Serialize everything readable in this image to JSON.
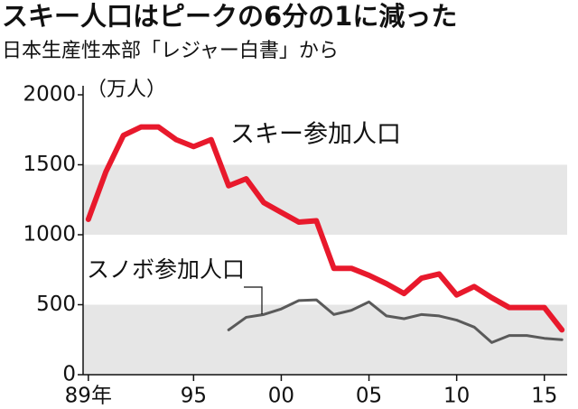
{
  "chart_data": {
    "type": "line",
    "title": "スキー人口はピークの6分の1に減った",
    "subtitle": "日本生産性本部「レジャー白書」から",
    "y_unit": "（万人）",
    "x": [
      1989,
      1990,
      1991,
      1992,
      1993,
      1994,
      1995,
      1996,
      1997,
      1998,
      1999,
      2000,
      2001,
      2002,
      2003,
      2004,
      2005,
      2006,
      2007,
      2008,
      2009,
      2010,
      2011,
      2012,
      2013,
      2014,
      2015,
      2016
    ],
    "series": [
      {
        "name": "スキー参加人口",
        "color": "#e8192c",
        "width": 6,
        "values": [
          1110,
          1450,
          1710,
          1770,
          1770,
          1680,
          1630,
          1680,
          1350,
          1400,
          1230,
          1160,
          1090,
          1100,
          760,
          760,
          710,
          650,
          580,
          690,
          720,
          570,
          630,
          550,
          480,
          480,
          480,
          320
        ]
      },
      {
        "name": "スノボ参加人口",
        "color": "#5a5a5a",
        "width": 3,
        "values": [
          null,
          null,
          null,
          null,
          null,
          null,
          null,
          null,
          320,
          410,
          430,
          470,
          530,
          535,
          430,
          460,
          520,
          420,
          400,
          430,
          420,
          390,
          340,
          230,
          280,
          280,
          260,
          250
        ]
      }
    ],
    "xlim": [
      1988.7,
      2016.3
    ],
    "xticks": [
      {
        "value": 1989,
        "label": "89年"
      },
      {
        "value": 1995,
        "label": "95"
      },
      {
        "value": 2000,
        "label": "00"
      },
      {
        "value": 2005,
        "label": "05"
      },
      {
        "value": 2010,
        "label": "10"
      },
      {
        "value": 2015,
        "label": "15"
      }
    ],
    "ylim": [
      0,
      2000
    ],
    "yticks": [
      0,
      500,
      1000,
      1500,
      2000
    ],
    "grid_bands": true,
    "band_color": "#e6e6e6"
  }
}
